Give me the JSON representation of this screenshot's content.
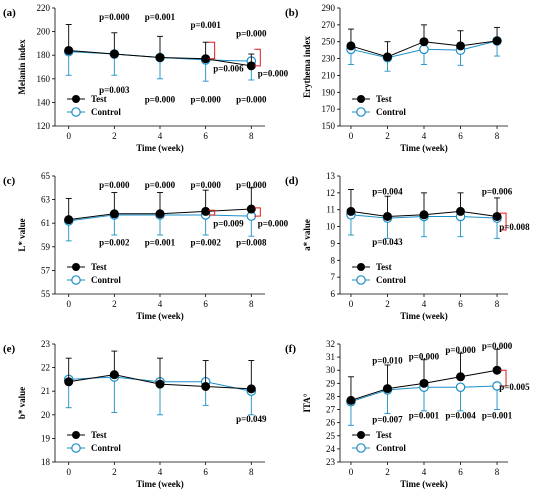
{
  "colors": {
    "test": "#000000",
    "control": "#1b8fc7",
    "sig": "#e31a1c"
  },
  "legend": {
    "test": "Test",
    "control": "Control"
  },
  "chart_data": [
    {
      "tag": "(a)",
      "type": "line",
      "ylabel": "Melanin index",
      "xlabel": "Time (week)",
      "x": [
        0,
        2,
        4,
        6,
        8
      ],
      "xlim": [
        -0.6,
        8.6
      ],
      "ylim": [
        120,
        220
      ],
      "yticks": [
        120,
        140,
        160,
        180,
        200,
        220
      ],
      "series": [
        {
          "name": "Test",
          "values": [
            184,
            181,
            178,
            177,
            171
          ],
          "err": [
            22,
            18,
            18,
            14,
            10
          ]
        },
        {
          "name": "Control",
          "values": [
            183,
            181,
            178,
            176,
            175
          ],
          "err": [
            20,
            18,
            18,
            18,
            16
          ]
        }
      ],
      "annotations": [
        {
          "text": "p=0.000",
          "x": 2,
          "y": 210,
          "color": "control"
        },
        {
          "text": "p=0.001",
          "x": 4,
          "y": 210,
          "color": "control"
        },
        {
          "text": "p=0.001",
          "x": 6,
          "y": 203,
          "color": "control"
        },
        {
          "text": "p=0.000",
          "x": 8,
          "y": 196,
          "color": "control"
        },
        {
          "text": "p=0.003",
          "x": 2,
          "y": 148,
          "color": "test"
        },
        {
          "text": "p=0.000",
          "x": 4,
          "y": 140,
          "color": "test"
        },
        {
          "text": "p=0.000",
          "x": 6,
          "y": 140,
          "color": "test"
        },
        {
          "text": "p=0.000",
          "x": 8,
          "y": 140,
          "color": "test"
        },
        {
          "text": "p=0.006",
          "x": 7.0,
          "y": 166,
          "color": "sig"
        },
        {
          "text": "p=0.000",
          "x": 8.95,
          "y": 162,
          "color": "sig"
        }
      ],
      "brackets": [
        {
          "x": 6,
          "y1": 177,
          "y2": 191,
          "side": "right"
        },
        {
          "x": 8,
          "y1": 171,
          "y2": 185,
          "side": "right"
        }
      ],
      "legend_pos": "bottom-left"
    },
    {
      "tag": "(b)",
      "type": "line",
      "ylabel": "Erythema index",
      "xlabel": "Time (week)",
      "x": [
        0,
        2,
        4,
        6,
        8
      ],
      "xlim": [
        -0.6,
        8.6
      ],
      "ylim": [
        150,
        290
      ],
      "yticks": [
        150,
        170,
        190,
        210,
        230,
        250,
        270,
        290
      ],
      "series": [
        {
          "name": "Test",
          "values": [
            245,
            232,
            250,
            245,
            251
          ],
          "err": [
            20,
            18,
            20,
            18,
            16
          ]
        },
        {
          "name": "Control",
          "values": [
            241,
            231,
            241,
            240,
            251
          ],
          "err": [
            18,
            16,
            18,
            18,
            18
          ]
        }
      ],
      "annotations": [],
      "brackets": [],
      "legend_pos": "bottom-left"
    },
    {
      "tag": "(c)",
      "type": "line",
      "ylabel": "L* value",
      "xlabel": "Time (week)",
      "x": [
        0,
        2,
        4,
        6,
        8
      ],
      "xlim": [
        -0.6,
        8.6
      ],
      "ylim": [
        55,
        65
      ],
      "yticks": [
        55,
        57,
        59,
        61,
        63,
        65
      ],
      "series": [
        {
          "name": "Test",
          "values": [
            61.3,
            61.8,
            61.8,
            62.0,
            62.2
          ],
          "err": [
            1.8,
            1.8,
            1.8,
            1.8,
            1.8
          ]
        },
        {
          "name": "Control",
          "values": [
            61.2,
            61.7,
            61.7,
            61.7,
            61.6
          ],
          "err": [
            1.7,
            1.7,
            1.7,
            1.7,
            1.7
          ]
        }
      ],
      "annotations": [
        {
          "text": "p=0.000",
          "x": 2,
          "y": 64.0,
          "color": "test"
        },
        {
          "text": "p=0.000",
          "x": 4,
          "y": 64.0,
          "color": "test"
        },
        {
          "text": "p=0.000",
          "x": 6,
          "y": 64.0,
          "color": "test"
        },
        {
          "text": "p=0.000",
          "x": 8,
          "y": 64.0,
          "color": "test"
        },
        {
          "text": "p=0.002",
          "x": 2,
          "y": 59.1,
          "color": "control"
        },
        {
          "text": "p=0.001",
          "x": 4,
          "y": 59.1,
          "color": "control"
        },
        {
          "text": "p=0.002",
          "x": 6,
          "y": 59.1,
          "color": "control"
        },
        {
          "text": "p=0.008",
          "x": 8,
          "y": 59.1,
          "color": "control"
        },
        {
          "text": "p=0.009",
          "x": 7.0,
          "y": 60.7,
          "color": "sig"
        },
        {
          "text": "p=0.000",
          "x": 8.95,
          "y": 60.7,
          "color": "sig"
        }
      ],
      "brackets": [
        {
          "x": 6,
          "y1": 61.7,
          "y2": 62.1,
          "side": "right"
        },
        {
          "x": 8,
          "y1": 61.6,
          "y2": 62.3,
          "side": "right"
        }
      ],
      "legend_pos": "bottom-left"
    },
    {
      "tag": "(d)",
      "type": "line",
      "ylabel": "a* value",
      "xlabel": "Time (week)",
      "x": [
        0,
        2,
        4,
        6,
        8
      ],
      "xlim": [
        -0.6,
        8.6
      ],
      "ylim": [
        6,
        13
      ],
      "yticks": [
        6,
        7,
        8,
        9,
        10,
        11,
        12,
        13
      ],
      "series": [
        {
          "name": "Test",
          "values": [
            10.9,
            10.6,
            10.7,
            10.9,
            10.6
          ],
          "err": [
            1.3,
            1.2,
            1.3,
            1.1,
            1.1
          ]
        },
        {
          "name": "Control",
          "values": [
            10.7,
            10.5,
            10.6,
            10.6,
            10.5
          ],
          "err": [
            1.2,
            1.2,
            1.2,
            1.2,
            1.2
          ]
        }
      ],
      "annotations": [
        {
          "text": "p=0.004",
          "x": 2,
          "y": 11.9,
          "color": "test"
        },
        {
          "text": "p=0.006",
          "x": 8,
          "y": 11.9,
          "color": "test"
        },
        {
          "text": "p=0.043",
          "x": 2,
          "y": 8.9,
          "color": "control"
        },
        {
          "text": "p=0.008",
          "x": 8.95,
          "y": 9.8,
          "color": "sig"
        }
      ],
      "brackets": [
        {
          "x": 8,
          "y1": 9.8,
          "y2": 10.8,
          "side": "right"
        }
      ],
      "legend_pos": "bottom-left"
    },
    {
      "tag": "(e)",
      "type": "line",
      "ylabel": "b* value",
      "xlabel": "Time (week)",
      "x": [
        0,
        2,
        4,
        6,
        8
      ],
      "xlim": [
        -0.6,
        8.6
      ],
      "ylim": [
        18,
        23
      ],
      "yticks": [
        18,
        19,
        20,
        21,
        22,
        23
      ],
      "series": [
        {
          "name": "Test",
          "values": [
            21.4,
            21.7,
            21.3,
            21.2,
            21.1
          ],
          "err": [
            1.0,
            1.0,
            1.1,
            1.1,
            1.2
          ]
        },
        {
          "name": "Control",
          "values": [
            21.5,
            21.6,
            21.4,
            21.4,
            21.0
          ],
          "err": [
            1.2,
            1.5,
            1.4,
            1.0,
            1.0
          ]
        }
      ],
      "annotations": [
        {
          "text": "p=0.049",
          "x": 8,
          "y": 19.7,
          "color": "control"
        }
      ],
      "brackets": [],
      "legend_pos": "bottom-left"
    },
    {
      "tag": "(f)",
      "type": "line",
      "ylabel": "ITA°",
      "xlabel": "Time (week)",
      "x": [
        0,
        2,
        4,
        6,
        8
      ],
      "xlim": [
        -0.6,
        8.6
      ],
      "ylim": [
        23,
        32
      ],
      "yticks": [
        23,
        24,
        25,
        26,
        27,
        28,
        29,
        30,
        31,
        32
      ],
      "series": [
        {
          "name": "Test",
          "values": [
            27.7,
            28.6,
            29.0,
            29.5,
            30.0
          ],
          "err": [
            1.8,
            1.8,
            1.8,
            1.8,
            1.6
          ]
        },
        {
          "name": "Control",
          "values": [
            27.6,
            28.5,
            28.7,
            28.7,
            28.8
          ],
          "err": [
            1.8,
            1.8,
            1.8,
            1.8,
            1.8
          ]
        }
      ],
      "annotations": [
        {
          "text": "p=0.010",
          "x": 2,
          "y": 30.5,
          "color": "test"
        },
        {
          "text": "p=0.000",
          "x": 4,
          "y": 30.8,
          "color": "test"
        },
        {
          "text": "p=0.000",
          "x": 6,
          "y": 31.3,
          "color": "test"
        },
        {
          "text": "p=0.000",
          "x": 8,
          "y": 31.6,
          "color": "test"
        },
        {
          "text": "p=0.007",
          "x": 2,
          "y": 26.0,
          "color": "control"
        },
        {
          "text": "p=0.001",
          "x": 4,
          "y": 26.3,
          "color": "control"
        },
        {
          "text": "p=0.004",
          "x": 6,
          "y": 26.3,
          "color": "control"
        },
        {
          "text": "p=0.001",
          "x": 8,
          "y": 26.3,
          "color": "control"
        },
        {
          "text": "p=0.005",
          "x": 8.95,
          "y": 28.5,
          "color": "sig"
        }
      ],
      "brackets": [
        {
          "x": 8,
          "y1": 28.8,
          "y2": 30.0,
          "side": "right"
        }
      ],
      "legend_pos": "bottom-left"
    }
  ]
}
